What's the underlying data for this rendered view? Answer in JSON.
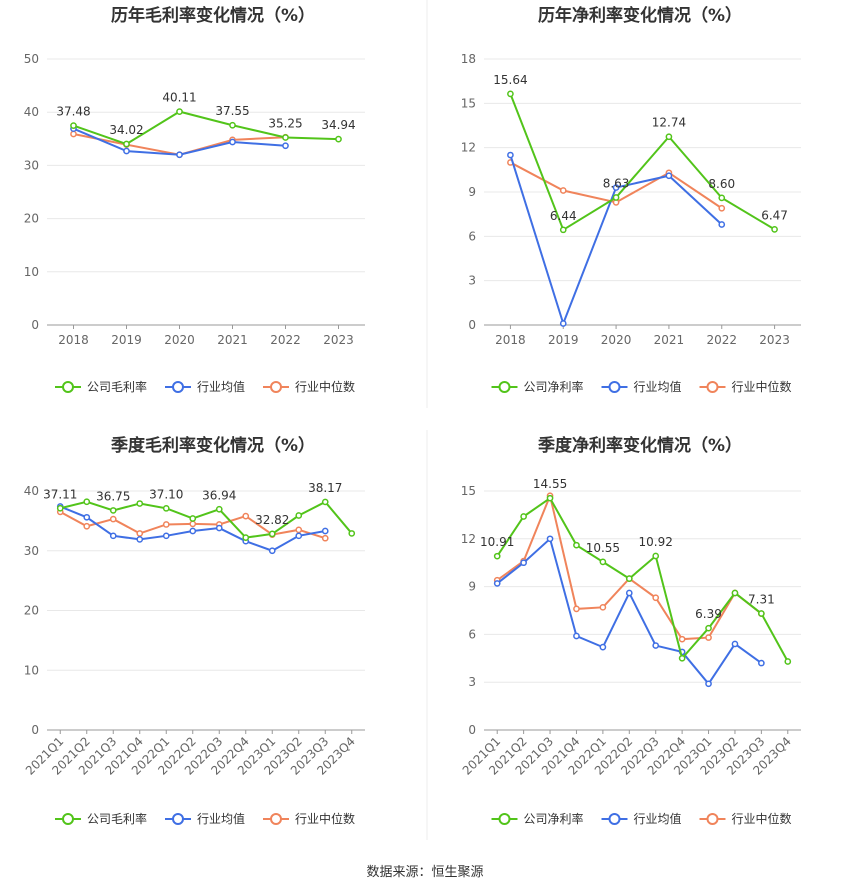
{
  "source_note": "数据来源：恒生聚源",
  "colors": {
    "company": "#52c41a",
    "avg": "#3f6fe4",
    "median": "#f0845b",
    "grid": "#e8e8e8",
    "axis": "#999999"
  },
  "chart_data": [
    {
      "type": "line",
      "title": "历年毛利率变化情况（%）",
      "categories": [
        "2018",
        "2019",
        "2020",
        "2021",
        "2022",
        "2023"
      ],
      "ylim": [
        0,
        50
      ],
      "yticks": [
        0,
        10,
        20,
        30,
        40,
        50
      ],
      "grid": true,
      "legend_position": "bottom",
      "series": [
        {
          "name": "公司毛利率",
          "role": "company",
          "values": [
            37.48,
            34.02,
            40.11,
            37.55,
            35.25,
            34.94
          ],
          "labels": [
            "37.48",
            "34.02",
            "40.11",
            "37.55",
            "35.25",
            "34.94"
          ]
        },
        {
          "name": "行业均值",
          "role": "avg",
          "values": [
            36.9,
            32.7,
            32.0,
            34.4,
            33.7,
            null
          ]
        },
        {
          "name": "行业中位数",
          "role": "median",
          "values": [
            35.9,
            33.9,
            32.0,
            34.8,
            35.3,
            null
          ]
        }
      ]
    },
    {
      "type": "line",
      "title": "历年净利率变化情况（%）",
      "categories": [
        "2018",
        "2019",
        "2020",
        "2021",
        "2022",
        "2023"
      ],
      "ylim": [
        0,
        18
      ],
      "yticks": [
        0,
        3,
        6,
        9,
        12,
        15,
        18
      ],
      "grid": true,
      "legend_position": "bottom",
      "series": [
        {
          "name": "公司净利率",
          "role": "company",
          "values": [
            15.64,
            6.44,
            8.63,
            12.74,
            8.6,
            6.47
          ],
          "labels": [
            "15.64",
            "6.44",
            "8.63",
            "12.74",
            "8.60",
            "6.47"
          ]
        },
        {
          "name": "行业均值",
          "role": "avg",
          "values": [
            11.5,
            0.1,
            9.3,
            10.1,
            6.8,
            null
          ]
        },
        {
          "name": "行业中位数",
          "role": "median",
          "values": [
            11.0,
            9.1,
            8.3,
            10.3,
            7.9,
            null
          ]
        }
      ]
    },
    {
      "type": "line",
      "title": "季度毛利率变化情况（%）",
      "categories": [
        "2021Q1",
        "2021Q2",
        "2021Q3",
        "2021Q4",
        "2022Q1",
        "2022Q2",
        "2022Q3",
        "2022Q4",
        "2023Q1",
        "2023Q2",
        "2023Q3",
        "2023Q4"
      ],
      "ylim": [
        0,
        40
      ],
      "yticks": [
        0,
        10,
        20,
        30,
        40
      ],
      "grid": true,
      "legend_position": "bottom",
      "series": [
        {
          "name": "公司毛利率",
          "role": "company",
          "values": [
            37.11,
            38.2,
            36.75,
            37.9,
            37.1,
            35.4,
            36.94,
            32.2,
            32.82,
            35.9,
            38.17,
            32.9
          ],
          "labels": [
            "37.11",
            "",
            "36.75",
            "",
            "37.10",
            "",
            "36.94",
            "",
            "32.82",
            "",
            "38.17",
            ""
          ]
        },
        {
          "name": "行业均值",
          "role": "avg",
          "values": [
            37.4,
            35.6,
            32.5,
            31.9,
            32.5,
            33.3,
            33.8,
            31.6,
            30.0,
            32.5,
            33.3,
            null
          ]
        },
        {
          "name": "行业中位数",
          "role": "median",
          "values": [
            36.5,
            34.1,
            35.3,
            32.9,
            34.4,
            34.5,
            34.4,
            35.8,
            32.7,
            33.5,
            32.1,
            null
          ]
        }
      ]
    },
    {
      "type": "line",
      "title": "季度净利率变化情况（%）",
      "categories": [
        "2021Q1",
        "2021Q2",
        "2021Q3",
        "2021Q4",
        "2022Q1",
        "2022Q2",
        "2022Q3",
        "2022Q4",
        "2023Q1",
        "2023Q2",
        "2023Q3",
        "2023Q4"
      ],
      "ylim": [
        0,
        15
      ],
      "yticks": [
        0,
        3,
        6,
        9,
        12,
        15
      ],
      "grid": true,
      "legend_position": "bottom",
      "series": [
        {
          "name": "公司净利率",
          "role": "company",
          "values": [
            10.91,
            13.4,
            14.55,
            11.6,
            10.55,
            9.5,
            10.92,
            4.5,
            6.39,
            8.6,
            7.31,
            4.3
          ],
          "labels": [
            "10.91",
            "",
            "14.55",
            "",
            "10.55",
            "",
            "10.92",
            "",
            "6.39",
            "",
            "7.31",
            ""
          ]
        },
        {
          "name": "行业均值",
          "role": "avg",
          "values": [
            9.2,
            10.5,
            12.0,
            5.9,
            5.2,
            8.6,
            5.3,
            4.9,
            2.9,
            5.4,
            4.2,
            null
          ]
        },
        {
          "name": "行业中位数",
          "role": "median",
          "values": [
            9.4,
            10.6,
            14.7,
            7.6,
            7.7,
            9.5,
            8.3,
            5.7,
            5.8,
            8.6,
            7.3,
            null
          ]
        }
      ]
    }
  ]
}
